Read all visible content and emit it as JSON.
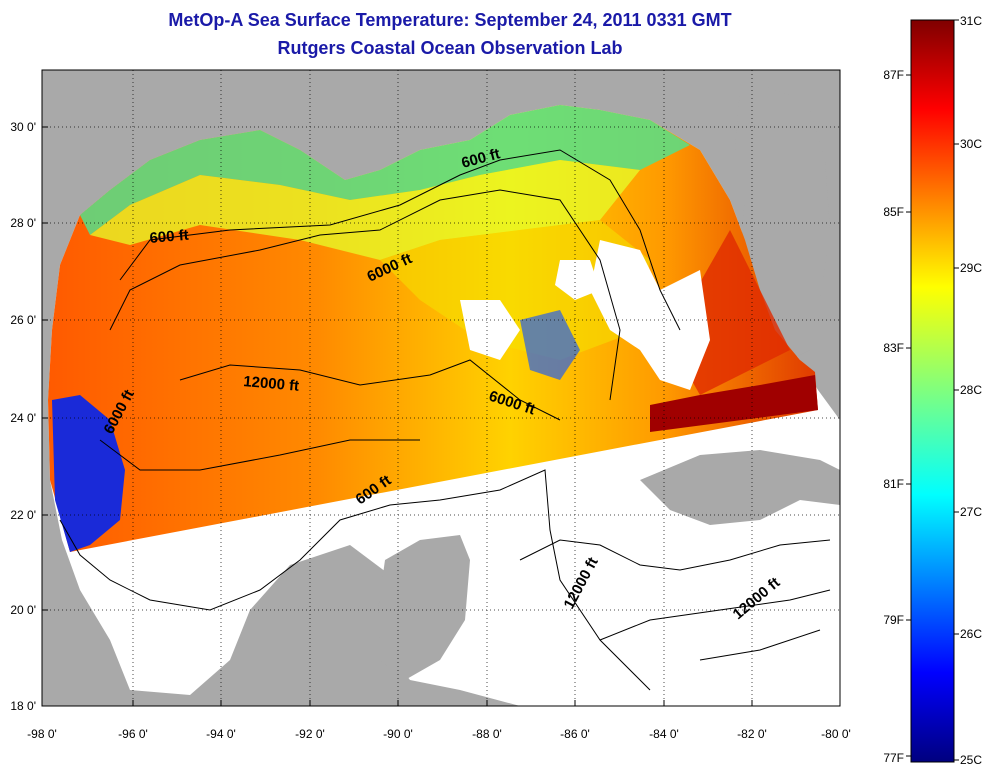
{
  "title": {
    "line1": "MetOp-A Sea Surface Temperature:  September 24, 2011 0331 GMT",
    "line2": "Rutgers Coastal Ocean Observation Lab"
  },
  "axes": {
    "lon_ticks": [
      "-98 0'",
      "-96 0'",
      "-94 0'",
      "-92 0'",
      "-90 0'",
      "-88 0'",
      "-86 0'",
      "-84 0'",
      "-82 0'",
      "-80 0'"
    ],
    "lat_ticks": [
      "18 0'",
      "20 0'",
      "22 0'",
      "24 0'",
      "26 0'",
      "28 0'",
      "30 0'"
    ],
    "lon_range": [
      -98,
      -80
    ],
    "lat_range": [
      18,
      31
    ]
  },
  "contour_labels": [
    "600 ft",
    "600 ft",
    "600 ft",
    "6000 ft",
    "6000 ft",
    "6000 ft",
    "12000 ft",
    "12000 ft",
    "12000 ft"
  ],
  "colorbar": {
    "celsius_labels": [
      "31C",
      "30C",
      "29C",
      "28C",
      "27C",
      "26C",
      "25C"
    ],
    "fahrenheit_labels": [
      "87F",
      "85F",
      "83F",
      "81F",
      "79F",
      "77F"
    ],
    "range_c": [
      25,
      31
    ],
    "colormap": "jet"
  },
  "colors": {
    "land": "#a9a9a9",
    "no_data": "#ffffff",
    "title": "#1a1aa8"
  }
}
